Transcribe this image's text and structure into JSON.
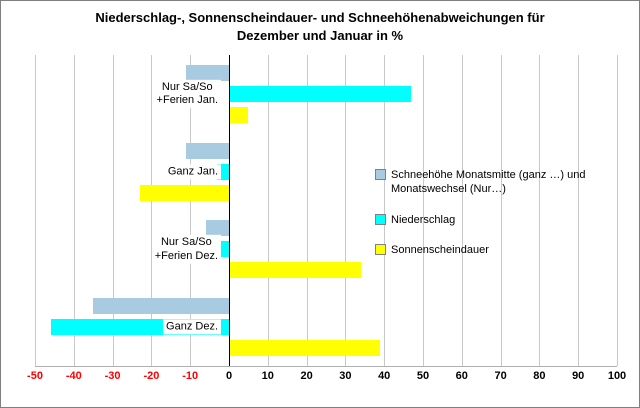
{
  "title": "Niederschlag-, Sonnenscheindauer- und Schneehöhenabweichungen für Dezember und Januar in %",
  "chart_data": {
    "type": "bar",
    "orientation": "horizontal",
    "categories": [
      "Nur Sa/So\n+Ferien Jan.",
      "Ganz Jan.",
      "Nur Sa/So\n+Ferien Dez.",
      "Ganz Dez."
    ],
    "series": [
      {
        "name": "Schneehöhe Monatsmitte (ganz …) und Monatswechsel (Nur…)",
        "color": "#a9cbe2",
        "values": [
          -11,
          -11,
          -6,
          -35
        ]
      },
      {
        "name": "Niederschlag",
        "color": "#00ffff",
        "values": [
          47,
          -3,
          -5,
          -46
        ]
      },
      {
        "name": "Sonnenscheindauer",
        "color": "#ffff00",
        "values": [
          5,
          -23,
          34,
          39
        ]
      }
    ],
    "xlim": [
      -50,
      100
    ],
    "xticks": [
      -50,
      -40,
      -30,
      -20,
      -10,
      0,
      10,
      20,
      30,
      40,
      50,
      60,
      70,
      80,
      90,
      100
    ],
    "grid": true,
    "legend_position": "right",
    "gridline_color": "#c9c9c9",
    "negative_tick_color": "#ff0000",
    "positive_tick_color": "#000000"
  }
}
